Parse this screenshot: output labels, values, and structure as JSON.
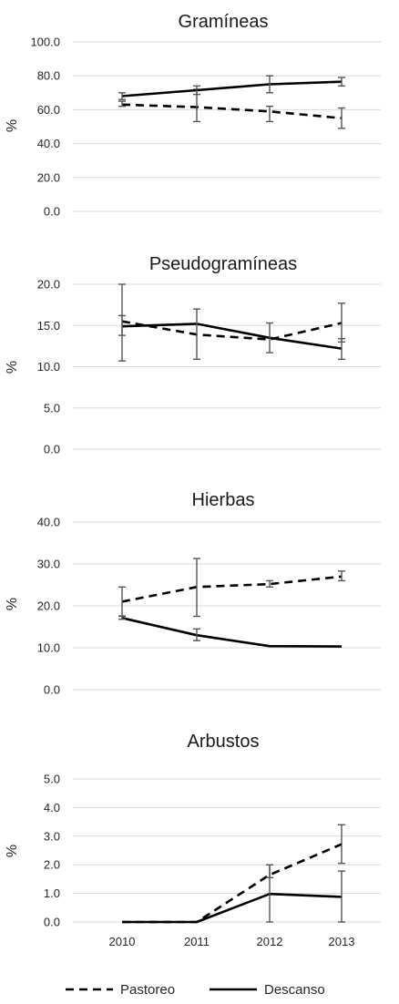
{
  "chart_data": [
    {
      "type": "line",
      "title": "Gramíneas",
      "ylabel": "%",
      "ylim": [
        0,
        100
      ],
      "yticks": [
        "100.0",
        "80.0",
        "60.0",
        "40.0",
        "20.0",
        "0.0"
      ],
      "x": [
        "2010",
        "2011",
        "2012",
        "2013"
      ],
      "grid": true,
      "series": [
        {
          "name": "Pastoreo",
          "style": "dashed",
          "values": [
            63,
            61.5,
            59,
            55
          ],
          "error": [
            [
              62,
              65
            ],
            [
              53,
              72
            ],
            [
              53,
              62
            ],
            [
              49,
              61
            ]
          ]
        },
        {
          "name": "Descanso",
          "style": "solid",
          "values": [
            68,
            71.5,
            75,
            76.5
          ],
          "error": [
            [
              66,
              70
            ],
            [
              69,
              74
            ],
            [
              70,
              80
            ],
            [
              74,
              79
            ]
          ]
        }
      ]
    },
    {
      "type": "line",
      "title": "Pseudogramíneas",
      "ylabel": "%",
      "ylim": [
        0,
        20
      ],
      "yticks": [
        "20.0",
        "15.0",
        "10.0",
        "5.0",
        "0.0"
      ],
      "x": [
        "2010",
        "2011",
        "2012",
        "2013"
      ],
      "grid": true,
      "series": [
        {
          "name": "Pastoreo",
          "style": "dashed",
          "values": [
            15.5,
            13.9,
            13.3,
            15.3
          ],
          "error": [
            [
              13.8,
              16.2
            ],
            [
              null,
              null
            ],
            [
              null,
              null
            ],
            [
              13.0,
              17.7
            ]
          ]
        },
        {
          "name": "Descanso",
          "style": "solid",
          "values": [
            14.9,
            15.2,
            13.5,
            12.2
          ],
          "error": [
            [
              10.7,
              20.0
            ],
            [
              10.9,
              17.0
            ],
            [
              11.7,
              15.3
            ],
            [
              10.9,
              13.4
            ]
          ]
        }
      ]
    },
    {
      "type": "line",
      "title": "Hierbas",
      "ylabel": "%",
      "ylim": [
        0,
        40
      ],
      "yticks": [
        "40.0",
        "30.0",
        "20.0",
        "10.0",
        "0.0"
      ],
      "x": [
        "2010",
        "2011",
        "2012",
        "2013"
      ],
      "grid": true,
      "series": [
        {
          "name": "Pastoreo",
          "style": "dashed",
          "values": [
            21,
            24.5,
            25.2,
            27
          ],
          "error": [
            [
              17.5,
              24.5
            ],
            [
              17.5,
              31.3
            ],
            [
              24.5,
              26.0
            ],
            [
              26.0,
              28.3
            ]
          ]
        },
        {
          "name": "Descanso",
          "style": "solid",
          "values": [
            17.1,
            13.0,
            10.4,
            10.3
          ],
          "error": [
            [
              16.8,
              17.6
            ],
            [
              11.7,
              14.5
            ],
            [
              null,
              null
            ],
            [
              null,
              null
            ]
          ]
        }
      ]
    },
    {
      "type": "line",
      "title": "Arbustos",
      "ylabel": "%",
      "ylim": [
        0,
        5
      ],
      "yticks": [
        "5.0",
        "4.0",
        "3.0",
        "2.0",
        "1.0",
        "0.0"
      ],
      "x": [
        "2010",
        "2011",
        "2012",
        "2013"
      ],
      "grid": true,
      "series": [
        {
          "name": "Pastoreo",
          "style": "dashed",
          "values": [
            0,
            0,
            1.65,
            2.72
          ],
          "error": [
            [
              null,
              null
            ],
            [
              null,
              null
            ],
            [
              1.55,
              2.0
            ],
            [
              2.05,
              3.4
            ]
          ]
        },
        {
          "name": "Descanso",
          "style": "solid",
          "values": [
            0,
            0,
            0.98,
            0.88
          ],
          "error": [
            [
              null,
              null
            ],
            [
              null,
              null
            ],
            [
              0.0,
              2.0
            ],
            [
              0.0,
              1.78
            ]
          ]
        }
      ]
    }
  ],
  "legend": {
    "position": "bottom",
    "items": [
      {
        "label": "Pastoreo",
        "style": "dashed"
      },
      {
        "label": "Descanso",
        "style": "solid"
      }
    ]
  },
  "colors": {
    "line": "#000000",
    "error_bar": "#555555",
    "grid": "#d9d9d9",
    "text": "#262626"
  }
}
